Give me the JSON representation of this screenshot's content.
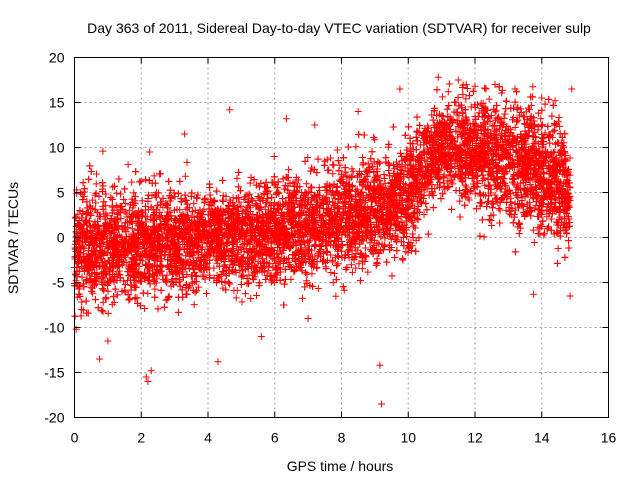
{
  "chart_data": {
    "type": "scatter",
    "title": "Day 363 of 2011, Sidereal Day-to-day VTEC variation (SDTVAR) for receiver sulp",
    "xlabel": "GPS time / hours",
    "ylabel": "SDTVAR / TECUs",
    "xlim": [
      0,
      16
    ],
    "ylim": [
      -20,
      20
    ],
    "xticks": [
      "0",
      "2",
      "4",
      "6",
      "8",
      "10",
      "12",
      "14",
      "16"
    ],
    "yticks": [
      "-20",
      "-15",
      "-10",
      "-5",
      "0",
      "5",
      "10",
      "15",
      "20"
    ],
    "grid": true,
    "marker": "+",
    "colors": {
      "series": "#ff0000",
      "axis": "#000000",
      "grid": "#a0a0a0"
    },
    "series": [
      {
        "name": "SDTVAR",
        "trend_x": [
          0,
          1,
          2,
          3,
          4,
          5,
          6,
          7,
          8,
          9,
          9.5,
          10,
          10.5,
          11,
          11.5,
          12,
          12.5,
          13,
          13.5,
          14,
          14.5,
          14.85
        ],
        "trend_y": [
          -1.5,
          -1,
          -0.8,
          -0.5,
          -0.3,
          0,
          0.5,
          1.2,
          2,
          3,
          3.8,
          5,
          8,
          10,
          10,
          9.5,
          9,
          8.5,
          8,
          7,
          6,
          5
        ],
        "spread_sd": [
          3.2,
          3,
          3,
          2.8,
          2.6,
          2.6,
          2.7,
          2.8,
          2.8,
          2.9,
          2.9,
          3,
          2.8,
          2.6,
          2.8,
          3,
          3.1,
          3.2,
          3.2,
          3.2,
          3.2,
          3
        ],
        "outliers": [
          {
            "x": 0.75,
            "y": -13.5
          },
          {
            "x": 0.85,
            "y": 9.6
          },
          {
            "x": 2.15,
            "y": -15.5
          },
          {
            "x": 2.2,
            "y": -16.0
          },
          {
            "x": 2.25,
            "y": 9.5
          },
          {
            "x": 4.3,
            "y": -13.8
          },
          {
            "x": 4.65,
            "y": 14.2
          },
          {
            "x": 6.35,
            "y": 13.2
          },
          {
            "x": 7.2,
            "y": 12.5
          },
          {
            "x": 8.5,
            "y": 14.0
          },
          {
            "x": 9.15,
            "y": -14.2
          },
          {
            "x": 9.2,
            "y": -18.5
          },
          {
            "x": 9.75,
            "y": 16.5
          },
          {
            "x": 10.9,
            "y": 17.8
          },
          {
            "x": 11.5,
            "y": 17.5
          },
          {
            "x": 12.6,
            "y": 17.0
          },
          {
            "x": 13.75,
            "y": -6.3
          },
          {
            "x": 14.0,
            "y": 15.5
          },
          {
            "x": 14.85,
            "y": -6.5
          },
          {
            "x": 14.9,
            "y": 16.5
          },
          {
            "x": 0.05,
            "y": -10.2
          },
          {
            "x": 1.0,
            "y": -11.5
          },
          {
            "x": 2.3,
            "y": -14.8
          },
          {
            "x": 5.6,
            "y": -11.0
          },
          {
            "x": 7.0,
            "y": -9.0
          },
          {
            "x": 11.2,
            "y": 16.2
          },
          {
            "x": 12.0,
            "y": 16.8
          },
          {
            "x": 13.2,
            "y": 16.5
          },
          {
            "x": 14.4,
            "y": 15.2
          },
          {
            "x": 3.3,
            "y": 11.5
          }
        ]
      }
    ]
  }
}
